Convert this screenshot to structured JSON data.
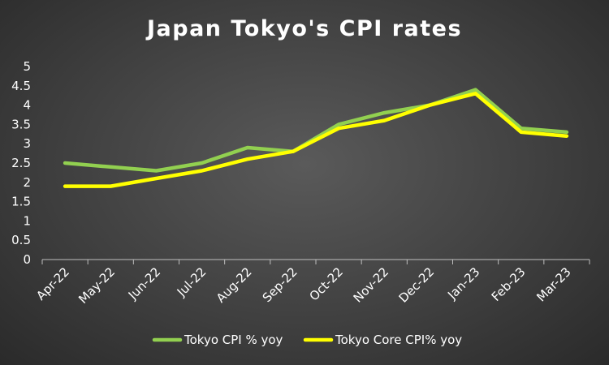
{
  "chart_data": {
    "type": "line",
    "title": "Japan Tokyo's CPI rates",
    "xlabel": "",
    "ylabel": "",
    "categories": [
      "Apr-22",
      "May-22",
      "Jun-22",
      "Jul-22",
      "Aug-22",
      "Sep-22",
      "Oct-22",
      "Nov-22",
      "Dec-22",
      "Jan-23",
      "Feb-23",
      "Mar-23"
    ],
    "ylim": [
      0,
      5
    ],
    "yticks": [
      "0",
      "0.5",
      "1",
      "1.5",
      "2",
      "2.5",
      "3",
      "3.5",
      "4",
      "4.5",
      "5"
    ],
    "grid": false,
    "legend_position": "bottom",
    "series": [
      {
        "name": "Tokyo CPI % yoy",
        "color": "#92d050",
        "values": [
          2.5,
          2.4,
          2.3,
          2.5,
          2.9,
          2.8,
          3.5,
          3.8,
          4.0,
          4.4,
          3.4,
          3.3
        ]
      },
      {
        "name": "Tokyo Core CPI% yoy",
        "color": "#ffff00",
        "values": [
          1.9,
          1.9,
          2.1,
          2.3,
          2.6,
          2.8,
          3.4,
          3.6,
          4.0,
          4.3,
          3.3,
          3.2
        ]
      }
    ]
  }
}
